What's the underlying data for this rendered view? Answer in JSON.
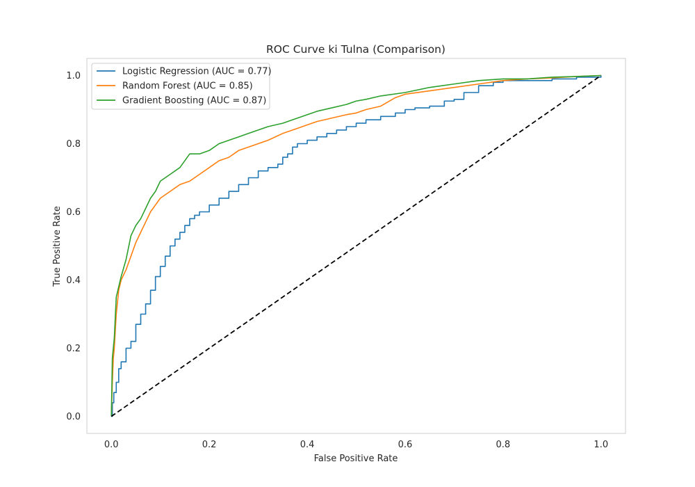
{
  "chart_data": {
    "type": "line",
    "title": "ROC Curve ki Tulna (Comparison)",
    "xlabel": "False Positive Rate",
    "ylabel": "True Positive Rate",
    "xlim": [
      -0.05,
      1.05
    ],
    "ylim": [
      -0.05,
      1.05
    ],
    "xticks": [
      "0.0",
      "0.2",
      "0.4",
      "0.6",
      "0.8",
      "1.0"
    ],
    "yticks": [
      "0.0",
      "0.2",
      "0.4",
      "0.6",
      "0.8",
      "1.0"
    ],
    "grid": false,
    "legend_position": "top-left",
    "series": [
      {
        "name": "Logistic Regression (AUC = 0.77)",
        "color": "#1f77b4",
        "step": true,
        "x": [
          0.0,
          0.002,
          0.005,
          0.01,
          0.015,
          0.02,
          0.03,
          0.04,
          0.05,
          0.06,
          0.07,
          0.08,
          0.09,
          0.1,
          0.11,
          0.12,
          0.13,
          0.14,
          0.15,
          0.16,
          0.17,
          0.18,
          0.2,
          0.22,
          0.24,
          0.26,
          0.28,
          0.3,
          0.32,
          0.34,
          0.35,
          0.36,
          0.37,
          0.38,
          0.4,
          0.42,
          0.44,
          0.46,
          0.48,
          0.5,
          0.52,
          0.55,
          0.58,
          0.6,
          0.62,
          0.65,
          0.68,
          0.7,
          0.72,
          0.75,
          0.78,
          0.8,
          0.85,
          0.9,
          0.95,
          1.0
        ],
        "y": [
          0.0,
          0.04,
          0.07,
          0.1,
          0.14,
          0.16,
          0.2,
          0.22,
          0.27,
          0.3,
          0.33,
          0.37,
          0.41,
          0.44,
          0.47,
          0.5,
          0.52,
          0.54,
          0.56,
          0.58,
          0.59,
          0.6,
          0.62,
          0.64,
          0.66,
          0.68,
          0.7,
          0.72,
          0.73,
          0.74,
          0.76,
          0.77,
          0.79,
          0.8,
          0.81,
          0.82,
          0.83,
          0.84,
          0.85,
          0.86,
          0.87,
          0.88,
          0.89,
          0.9,
          0.905,
          0.91,
          0.925,
          0.93,
          0.95,
          0.97,
          0.98,
          0.985,
          0.985,
          0.99,
          0.995,
          1.0
        ]
      },
      {
        "name": "Random Forest (AUC = 0.85)",
        "color": "#ff7f0e",
        "step": false,
        "x": [
          0.0,
          0.002,
          0.004,
          0.006,
          0.01,
          0.015,
          0.02,
          0.03,
          0.04,
          0.05,
          0.06,
          0.07,
          0.08,
          0.09,
          0.1,
          0.12,
          0.14,
          0.16,
          0.18,
          0.2,
          0.22,
          0.24,
          0.26,
          0.28,
          0.3,
          0.32,
          0.35,
          0.38,
          0.4,
          0.42,
          0.45,
          0.48,
          0.5,
          0.52,
          0.55,
          0.58,
          0.6,
          0.65,
          0.7,
          0.75,
          0.8,
          0.85,
          0.9,
          0.95,
          1.0
        ],
        "y": [
          0.0,
          0.1,
          0.17,
          0.2,
          0.3,
          0.37,
          0.4,
          0.43,
          0.47,
          0.51,
          0.54,
          0.57,
          0.6,
          0.62,
          0.64,
          0.66,
          0.68,
          0.69,
          0.71,
          0.73,
          0.75,
          0.76,
          0.78,
          0.79,
          0.8,
          0.81,
          0.83,
          0.845,
          0.855,
          0.865,
          0.875,
          0.885,
          0.89,
          0.9,
          0.91,
          0.935,
          0.945,
          0.955,
          0.965,
          0.975,
          0.985,
          0.99,
          0.993,
          0.997,
          1.0
        ]
      },
      {
        "name": "Gradient Boosting (AUC = 0.87)",
        "color": "#2ca02c",
        "step": false,
        "x": [
          0.0,
          0.002,
          0.004,
          0.006,
          0.01,
          0.015,
          0.02,
          0.03,
          0.04,
          0.05,
          0.06,
          0.07,
          0.08,
          0.09,
          0.1,
          0.12,
          0.14,
          0.16,
          0.18,
          0.2,
          0.22,
          0.24,
          0.26,
          0.28,
          0.3,
          0.32,
          0.35,
          0.38,
          0.4,
          0.42,
          0.45,
          0.48,
          0.5,
          0.52,
          0.55,
          0.6,
          0.65,
          0.7,
          0.75,
          0.8,
          0.85,
          0.9,
          0.95,
          1.0
        ],
        "y": [
          0.0,
          0.17,
          0.2,
          0.23,
          0.35,
          0.38,
          0.41,
          0.46,
          0.53,
          0.56,
          0.58,
          0.61,
          0.64,
          0.66,
          0.69,
          0.71,
          0.73,
          0.77,
          0.77,
          0.78,
          0.8,
          0.81,
          0.82,
          0.83,
          0.84,
          0.85,
          0.86,
          0.875,
          0.885,
          0.895,
          0.905,
          0.915,
          0.925,
          0.93,
          0.94,
          0.95,
          0.965,
          0.975,
          0.985,
          0.99,
          0.99,
          0.995,
          0.997,
          1.0
        ]
      },
      {
        "name": "",
        "color": "#000000",
        "dashed": true,
        "step": false,
        "x": [
          0.0,
          1.0
        ],
        "y": [
          0.0,
          1.0
        ]
      }
    ]
  }
}
